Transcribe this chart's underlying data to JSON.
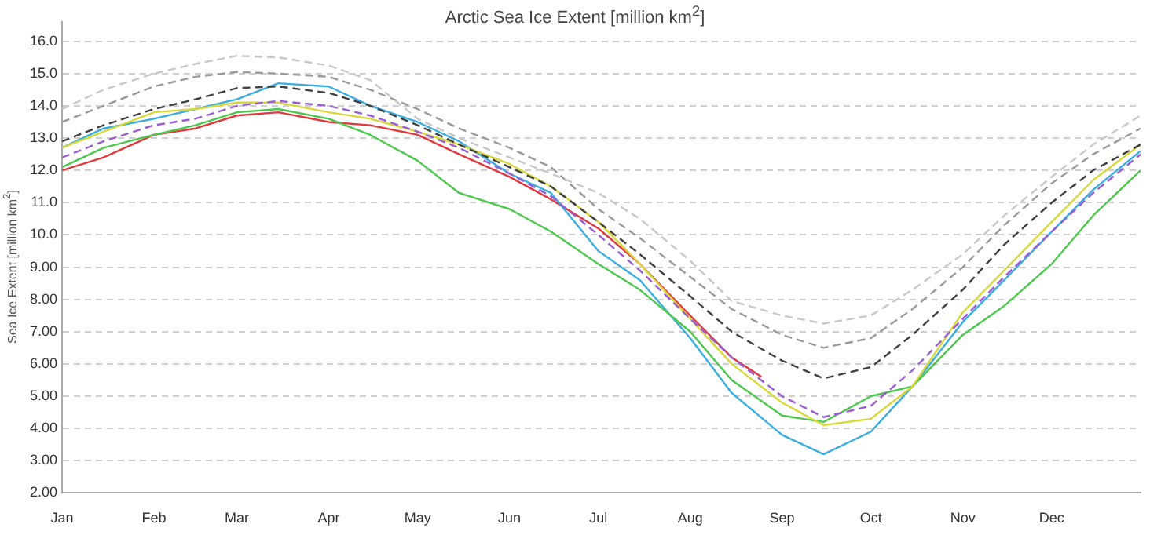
{
  "chart_data": {
    "type": "line",
    "title": "Arctic Sea Ice Extent [million km$^{2}$]",
    "ylabel": "Sea Ice Extent [million km$^{2}$]",
    "x": [
      "--01-01",
      "--01-15",
      "--02-01",
      "--02-15",
      "--03-01",
      "--03-15",
      "--04-01",
      "--04-15",
      "--05-01",
      "--05-15",
      "--06-01",
      "--06-15",
      "--07-01",
      "--07-15",
      "--08-01",
      "--08-15",
      "--09-01",
      "--09-15",
      "--10-01",
      "--10-15",
      "--11-01",
      "--11-15",
      "--12-01",
      "--12-15",
      "--12-31"
    ],
    "xlim": [
      "--01-01",
      "--12-31"
    ],
    "xticks": [
      {
        "value": "--01-01",
        "label": "Jan"
      },
      {
        "value": "--02-01",
        "label": "Feb"
      },
      {
        "value": "--03-01",
        "label": "Mar"
      },
      {
        "value": "--04-01",
        "label": "Apr"
      },
      {
        "value": "--05-01",
        "label": "May"
      },
      {
        "value": "--06-01",
        "label": "Jun"
      },
      {
        "value": "--07-01",
        "label": "Jul"
      },
      {
        "value": "--08-01",
        "label": "Aug"
      },
      {
        "value": "--09-01",
        "label": "Sep"
      },
      {
        "value": "--10-01",
        "label": "Oct"
      },
      {
        "value": "--11-01",
        "label": "Nov"
      },
      {
        "value": "--12-01",
        "label": "Dec"
      }
    ],
    "ylim": [
      2,
      16.6
    ],
    "yticks": [
      {
        "value": 2,
        "label": "2.00"
      },
      {
        "value": 3,
        "label": "3.00"
      },
      {
        "value": 4,
        "label": "4.00"
      },
      {
        "value": 5,
        "label": "5.00"
      },
      {
        "value": 6,
        "label": "6.00"
      },
      {
        "value": 7,
        "label": "7.00"
      },
      {
        "value": 8,
        "label": "8.00"
      },
      {
        "value": 9,
        "label": "9.00"
      },
      {
        "value": 10,
        "label": "10.0"
      },
      {
        "value": 11,
        "label": "11.0"
      },
      {
        "value": 12,
        "label": "12.0"
      },
      {
        "value": 13,
        "label": "13.0"
      },
      {
        "value": 14,
        "label": "14.0"
      },
      {
        "value": 15,
        "label": "15.0"
      },
      {
        "value": 16,
        "label": "16.0"
      }
    ],
    "grid": "y",
    "legend": false,
    "marker": "none",
    "series": [
      {
        "color": "#c8c8c8",
        "line_style": "dashed",
        "values": [
          13.9,
          14.5,
          15.0,
          15.3,
          15.55,
          15.5,
          15.25,
          14.8,
          13.6,
          13.0,
          12.4,
          11.9,
          11.3,
          10.5,
          9.2,
          7.95,
          7.5,
          7.25,
          7.5,
          8.3,
          9.4,
          10.6,
          11.8,
          12.8,
          13.7
        ]
      },
      {
        "color": "#9a9a9a",
        "line_style": "dashed",
        "values": [
          13.5,
          14.0,
          14.6,
          14.9,
          15.05,
          15.0,
          14.9,
          14.5,
          13.9,
          13.3,
          12.7,
          12.1,
          10.8,
          9.9,
          8.7,
          7.7,
          6.9,
          6.5,
          6.8,
          7.7,
          9.0,
          10.3,
          11.6,
          12.5,
          13.3
        ]
      },
      {
        "color": "#404040",
        "line_style": "dashed",
        "values": [
          12.9,
          13.4,
          13.9,
          14.2,
          14.55,
          14.6,
          14.4,
          14.0,
          13.4,
          12.8,
          12.1,
          11.5,
          10.4,
          9.4,
          8.1,
          7.0,
          6.1,
          5.55,
          5.9,
          6.9,
          8.3,
          9.7,
          11.0,
          12.0,
          12.8
        ]
      },
      {
        "color": "#9c5cd6",
        "line_style": "dashed",
        "values": [
          12.4,
          12.9,
          13.4,
          13.6,
          14.0,
          14.15,
          14.0,
          13.7,
          13.2,
          12.7,
          11.9,
          11.2,
          10.0,
          8.9,
          7.4,
          6.2,
          5.0,
          4.35,
          4.7,
          5.8,
          7.4,
          8.7,
          10.1,
          11.3,
          12.5
        ]
      },
      {
        "color": "#d8d83a",
        "line_style": "solid",
        "values": [
          12.7,
          13.2,
          13.8,
          13.9,
          14.1,
          14.1,
          13.8,
          13.6,
          13.2,
          12.8,
          12.2,
          11.5,
          10.4,
          9.1,
          7.4,
          6.0,
          4.8,
          4.1,
          4.3,
          5.3,
          7.6,
          8.9,
          10.4,
          11.7,
          12.8
        ]
      },
      {
        "color": "#4cc94c",
        "line_style": "solid",
        "values": [
          12.1,
          12.7,
          13.1,
          13.4,
          13.8,
          13.9,
          13.6,
          13.1,
          12.3,
          11.3,
          10.8,
          10.1,
          9.1,
          8.3,
          7.0,
          5.5,
          4.4,
          4.2,
          5.0,
          5.3,
          6.9,
          7.8,
          9.1,
          10.6,
          12.0
        ]
      },
      {
        "color": "#3aaee0",
        "line_style": "solid",
        "values": [
          12.7,
          13.3,
          13.6,
          13.9,
          14.2,
          14.7,
          14.6,
          14.0,
          13.5,
          12.9,
          11.9,
          11.3,
          9.5,
          8.6,
          6.8,
          5.1,
          3.8,
          3.2,
          3.9,
          5.3,
          7.3,
          8.6,
          10.1,
          11.4,
          12.6
        ]
      },
      {
        "color": "#e0393e",
        "line_style": "solid",
        "x": [
          "--01-01",
          "--01-15",
          "--02-01",
          "--02-15",
          "--03-01",
          "--03-15",
          "--04-01",
          "--04-15",
          "--05-01",
          "--05-15",
          "--06-01",
          "--06-15",
          "--07-01",
          "--07-15",
          "--08-01",
          "--08-15",
          "--08-25"
        ],
        "values": [
          12.0,
          12.4,
          13.1,
          13.3,
          13.7,
          13.8,
          13.5,
          13.4,
          13.1,
          12.5,
          11.8,
          11.1,
          10.2,
          9.1,
          7.5,
          6.2,
          5.6
        ]
      }
    ]
  }
}
